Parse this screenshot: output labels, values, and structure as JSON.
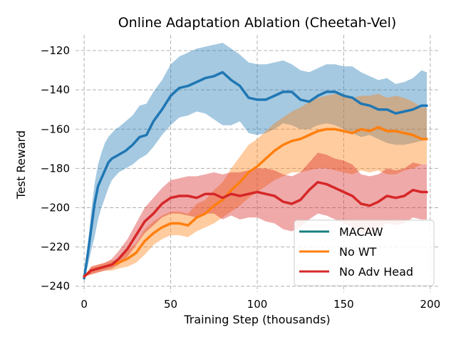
{
  "chart_data": {
    "type": "line",
    "title": "Online Adaptation Ablation (Cheetah-Vel)",
    "xlabel": "Training Step (thousands)",
    "ylabel": "Test Reward",
    "xlim": [
      -5,
      205
    ],
    "ylim": [
      -243,
      -112
    ],
    "xticks": [
      0,
      50,
      100,
      150,
      200
    ],
    "yticks": [
      -240,
      -220,
      -200,
      -180,
      -160,
      -140,
      -120
    ],
    "grid": true,
    "legend_position": "bottom-right",
    "series": [
      {
        "name": "MACAW",
        "color": "#1f77b4",
        "legend_color": "#1a7f7f",
        "x": [
          0,
          2,
          4,
          6,
          8,
          10,
          12,
          14,
          16,
          18,
          20,
          24,
          28,
          32,
          36,
          40,
          45,
          50,
          55,
          60,
          65,
          70,
          75,
          80,
          85,
          90,
          95,
          100,
          105,
          110,
          115,
          120,
          125,
          130,
          135,
          140,
          145,
          150,
          155,
          160,
          165,
          170,
          175,
          180,
          185,
          190,
          195,
          198
        ],
        "mean": [
          -236,
          -224,
          -211,
          -198,
          -189,
          -185,
          -181,
          -177,
          -175,
          -174,
          -173,
          -171,
          -168,
          -164,
          -163,
          -156,
          -150,
          -143,
          -139,
          -138,
          -136,
          -134,
          -133,
          -131,
          -135,
          -138,
          -144,
          -145,
          -145,
          -143,
          -141,
          -141,
          -145,
          -146,
          -143,
          -141,
          -141,
          -143,
          -144,
          -147,
          -148,
          -150,
          -150,
          -152,
          -151,
          -150,
          -148,
          -148
        ],
        "lower": [
          -236,
          -230,
          -222,
          -215,
          -206,
          -200,
          -195,
          -190,
          -186,
          -184,
          -182,
          -180,
          -178,
          -175,
          -173,
          -169,
          -163,
          -158,
          -154,
          -153,
          -151,
          -152,
          -155,
          -158,
          -158,
          -156,
          -162,
          -163,
          -162,
          -160,
          -157,
          -158,
          -160,
          -160,
          -158,
          -157,
          -158,
          -160,
          -162,
          -164,
          -163,
          -165,
          -167,
          -168,
          -168,
          -167,
          -166,
          -165
        ],
        "upper": [
          -236,
          -220,
          -202,
          -188,
          -178,
          -172,
          -167,
          -164,
          -162,
          -160,
          -159,
          -156,
          -153,
          -148,
          -147,
          -141,
          -135,
          -127,
          -123,
          -121,
          -119,
          -118,
          -117,
          -116,
          -119,
          -122,
          -126,
          -127,
          -127,
          -126,
          -125,
          -127,
          -130,
          -131,
          -129,
          -127,
          -127,
          -128,
          -128,
          -131,
          -133,
          -135,
          -134,
          -137,
          -136,
          -134,
          -130,
          -131
        ]
      },
      {
        "name": "No WT",
        "color": "#ff7f0e",
        "x": [
          0,
          4,
          8,
          12,
          16,
          20,
          25,
          30,
          35,
          40,
          45,
          50,
          55,
          60,
          65,
          70,
          75,
          80,
          85,
          90,
          95,
          100,
          105,
          110,
          115,
          120,
          125,
          130,
          135,
          140,
          145,
          150,
          155,
          160,
          165,
          170,
          175,
          180,
          185,
          190,
          195,
          198
        ],
        "mean": [
          -235,
          -232,
          -231,
          -230,
          -229,
          -228,
          -226,
          -223,
          -217,
          -213,
          -210,
          -208,
          -208,
          -209,
          -205,
          -203,
          -199,
          -196,
          -191,
          -187,
          -182,
          -179,
          -175,
          -171,
          -168,
          -166,
          -165,
          -163,
          -161,
          -160,
          -160,
          -161,
          -162,
          -160,
          -161,
          -159,
          -161,
          -161,
          -162,
          -163,
          -165,
          -165
        ],
        "lower": [
          -235,
          -234,
          -233,
          -232,
          -232,
          -231,
          -230,
          -228,
          -224,
          -219,
          -216,
          -214,
          -214,
          -215,
          -212,
          -210,
          -208,
          -205,
          -202,
          -199,
          -195,
          -192,
          -189,
          -186,
          -184,
          -182,
          -182,
          -181,
          -180,
          -180,
          -181,
          -182,
          -183,
          -181,
          -182,
          -181,
          -183,
          -183,
          -181,
          -180,
          -178,
          -178
        ],
        "upper": [
          -235,
          -230,
          -229,
          -228,
          -227,
          -226,
          -222,
          -218,
          -211,
          -207,
          -204,
          -202,
          -202,
          -203,
          -198,
          -196,
          -191,
          -187,
          -180,
          -174,
          -168,
          -165,
          -161,
          -157,
          -154,
          -151,
          -149,
          -146,
          -144,
          -143,
          -142,
          -142,
          -144,
          -143,
          -143,
          -142,
          -144,
          -143,
          -144,
          -146,
          -149,
          -149
        ]
      },
      {
        "name": "No Adv Head",
        "color": "#d62728",
        "x": [
          0,
          4,
          8,
          12,
          16,
          20,
          25,
          30,
          35,
          40,
          45,
          50,
          55,
          60,
          65,
          70,
          75,
          80,
          85,
          90,
          95,
          100,
          105,
          110,
          115,
          120,
          125,
          130,
          135,
          140,
          145,
          150,
          155,
          160,
          165,
          170,
          175,
          180,
          185,
          190,
          195,
          198
        ],
        "mean": [
          -235,
          -232,
          -231,
          -230,
          -229,
          -226,
          -221,
          -214,
          -207,
          -203,
          -198,
          -195,
          -194,
          -194,
          -195,
          -193,
          -193,
          -195,
          -193,
          -194,
          -193,
          -192,
          -193,
          -194,
          -197,
          -198,
          -196,
          -191,
          -187,
          -188,
          -190,
          -192,
          -194,
          -198,
          -199,
          -197,
          -194,
          -195,
          -194,
          -191,
          -192,
          -192
        ],
        "lower": [
          -235,
          -234,
          -233,
          -232,
          -231,
          -229,
          -225,
          -219,
          -213,
          -209,
          -205,
          -203,
          -203,
          -204,
          -205,
          -203,
          -203,
          -206,
          -204,
          -206,
          -205,
          -205,
          -207,
          -208,
          -211,
          -212,
          -210,
          -206,
          -203,
          -204,
          -206,
          -208,
          -210,
          -213,
          -213,
          -211,
          -208,
          -209,
          -208,
          -205,
          -206,
          -206
        ],
        "upper": [
          -235,
          -230,
          -229,
          -228,
          -226,
          -222,
          -216,
          -208,
          -200,
          -195,
          -190,
          -186,
          -185,
          -184,
          -184,
          -183,
          -182,
          -183,
          -182,
          -182,
          -181,
          -180,
          -180,
          -181,
          -183,
          -184,
          -182,
          -177,
          -172,
          -173,
          -175,
          -176,
          -178,
          -183,
          -184,
          -183,
          -180,
          -181,
          -180,
          -177,
          -178,
          -178
        ]
      }
    ]
  }
}
